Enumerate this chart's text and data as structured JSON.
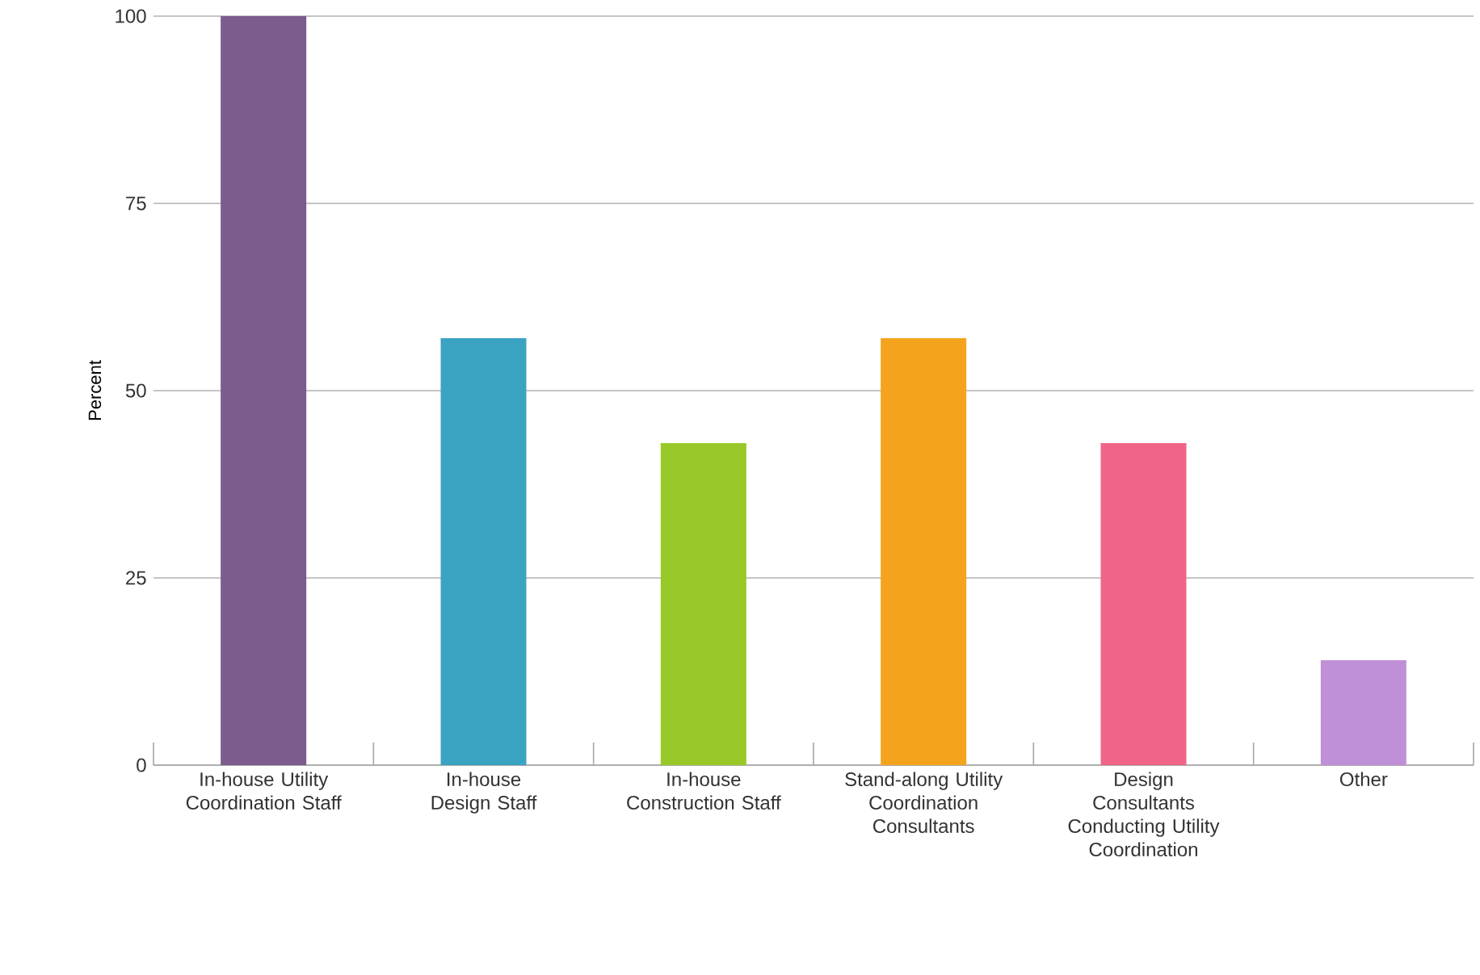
{
  "chart_data": {
    "type": "bar",
    "ylabel": "Percent",
    "categories": [
      "In-house Utility Coordination Staff",
      "In-house Design Staff",
      "In-house Construction Staff",
      "Stand-along Utility Coordination Consultants",
      "Design Consultants Conducting Utility Coordination",
      "Other"
    ],
    "values": [
      100,
      57,
      43,
      57,
      43,
      14
    ],
    "colors": [
      "#7b5c8c",
      "#3ba3c2",
      "#98c928",
      "#f4a41c",
      "#f06587",
      "#bf8fd8"
    ],
    "ylim": [
      0,
      100
    ],
    "yticks": [
      0,
      25,
      50,
      75,
      100
    ],
    "grid": "y"
  }
}
